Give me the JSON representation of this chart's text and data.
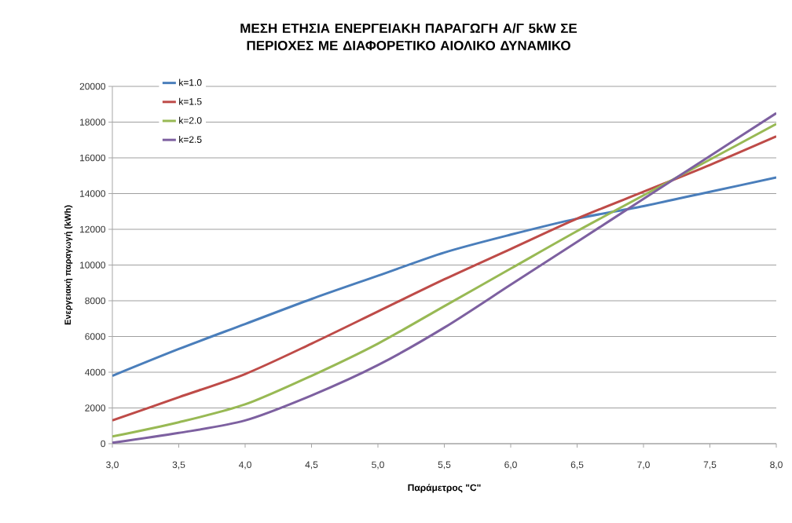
{
  "chart_data": {
    "type": "line",
    "title": "ΜΕΣΗ ΕΤΗΣΙΑ ΕΝΕΡΓΕΙΑΚΗ ΠΑΡΑΓΩΓΗ Α/Γ 5kW ΣΕ ΠΕΡΙΟΧΕΣ ΜΕ ΔΙΑΦΟΡΕΤΙΚΟ ΑΙΟΛΙΚΟ ΔΥΝΑΜΙΚΟ",
    "xlabel": "Παράμετρος \"C\"",
    "ylabel": "Ενεργειακή παραγωγή (kWh)",
    "x": [
      3.0,
      3.5,
      4.0,
      4.5,
      5.0,
      5.5,
      6.0,
      6.5,
      7.0,
      7.5,
      8.0
    ],
    "series": [
      {
        "name": "k=1.0",
        "color": "#4a7ebb",
        "values": [
          3800,
          5300,
          6700,
          8100,
          9400,
          10700,
          11700,
          12600,
          13300,
          14100,
          14900
        ]
      },
      {
        "name": "k=1.5",
        "color": "#be4b48",
        "values": [
          1300,
          2600,
          3900,
          5600,
          7400,
          9200,
          10900,
          12600,
          14100,
          15600,
          17200
        ]
      },
      {
        "name": "k=2.0",
        "color": "#98b954",
        "values": [
          400,
          1200,
          2200,
          3800,
          5600,
          7700,
          9800,
          11900,
          13900,
          15900,
          17900
        ]
      },
      {
        "name": "k=2.5",
        "color": "#7d60a0",
        "values": [
          50,
          600,
          1300,
          2700,
          4400,
          6500,
          8900,
          11300,
          13700,
          16100,
          18500
        ]
      }
    ],
    "xlim": [
      3.0,
      8.0
    ],
    "xticks": [
      {
        "value": 3.0,
        "label": "3,0"
      },
      {
        "value": 3.5,
        "label": "3,5"
      },
      {
        "value": 4.0,
        "label": "4,0"
      },
      {
        "value": 4.5,
        "label": "4,5"
      },
      {
        "value": 5.0,
        "label": "5,0"
      },
      {
        "value": 5.5,
        "label": "5,5"
      },
      {
        "value": 6.0,
        "label": "6,0"
      },
      {
        "value": 6.5,
        "label": "6,5"
      },
      {
        "value": 7.0,
        "label": "7,0"
      },
      {
        "value": 7.5,
        "label": "7,5"
      },
      {
        "value": 8.0,
        "label": "8,0"
      }
    ],
    "ylim": [
      0,
      20000
    ],
    "yticks": [
      0,
      2000,
      4000,
      6000,
      8000,
      10000,
      12000,
      14000,
      16000,
      18000,
      20000
    ],
    "grid": "y",
    "legend": "top left",
    "line_style": "solid"
  }
}
